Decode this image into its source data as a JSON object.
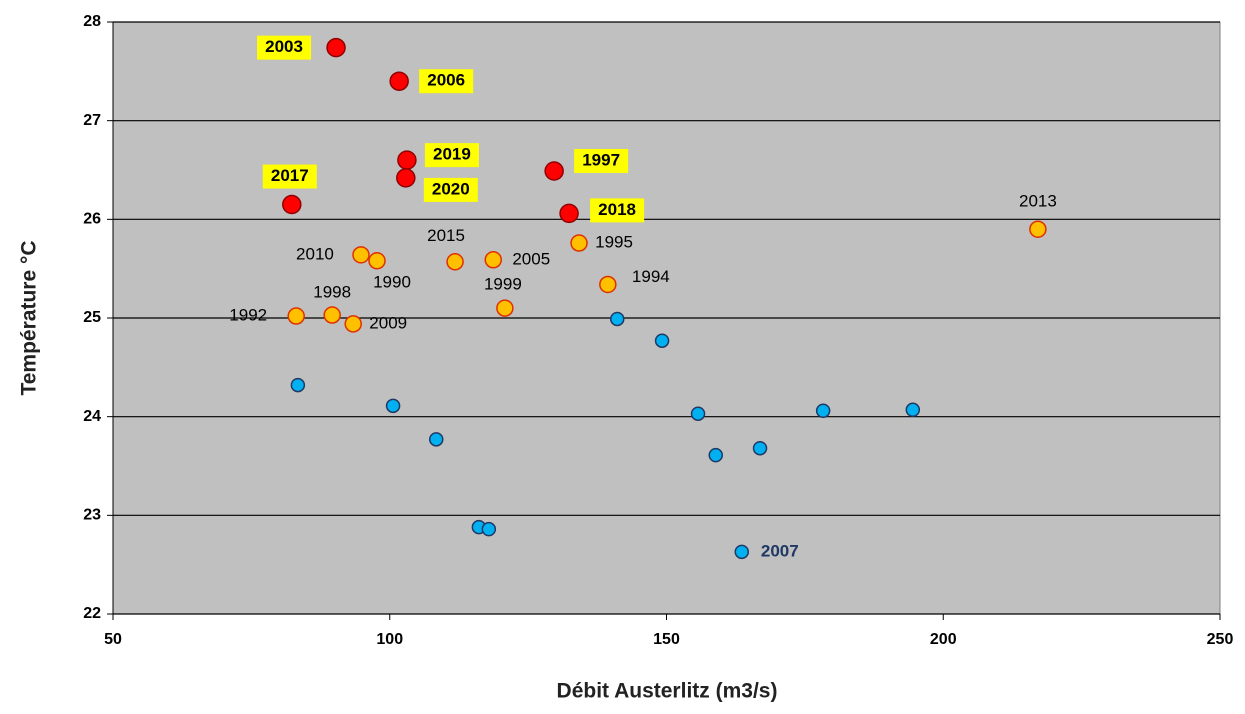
{
  "chart_data": {
    "type": "scatter",
    "xlabel": "Débit Austerlitz (m3/s)",
    "ylabel": "Température °C",
    "xlim": [
      50,
      250
    ],
    "xticks": [
      50,
      100,
      150,
      200,
      250
    ],
    "ylim": [
      22,
      28
    ],
    "yticks": [
      22,
      23,
      24,
      25,
      26,
      27,
      28
    ],
    "grid": true,
    "series": [
      {
        "color": "#ff0000",
        "x": [
          90.3,
          101.7,
          103.1,
          102.9,
          129.7,
          132.4,
          82.3
        ],
        "values": [
          27.74,
          27.4,
          26.6,
          26.42,
          26.49,
          26.06,
          26.15
        ],
        "labels": [
          "2003",
          "2006",
          "2019",
          "2020",
          "1997",
          "2018",
          "2017"
        ]
      },
      {
        "color": "#ffc000",
        "x": [
          217.1,
          94.8,
          97.7,
          111.8,
          118.7,
          134.2,
          139.4,
          120.8,
          83.1,
          89.6,
          93.4
        ],
        "values": [
          25.9,
          25.64,
          25.58,
          25.57,
          25.59,
          25.76,
          25.34,
          25.1,
          25.02,
          25.03,
          24.94
        ],
        "labels": [
          "2013",
          "2010",
          "1990",
          "2015",
          "2005",
          "1995",
          "1994",
          "1999",
          "1992",
          "1998",
          "2009"
        ]
      },
      {
        "color": "#00b0f0",
        "x": [
          83.4,
          100.6,
          108.4,
          116.1,
          117.9,
          141.1,
          149.2,
          155.7,
          158.9,
          166.9,
          178.3,
          194.5,
          163.6
        ],
        "values": [
          24.32,
          24.11,
          23.77,
          22.88,
          22.86,
          24.99,
          24.77,
          24.03,
          23.61,
          23.68,
          24.06,
          24.07,
          22.63
        ],
        "labels": [
          null,
          null,
          null,
          null,
          null,
          null,
          null,
          null,
          null,
          null,
          null,
          null,
          "2007"
        ]
      }
    ]
  }
}
